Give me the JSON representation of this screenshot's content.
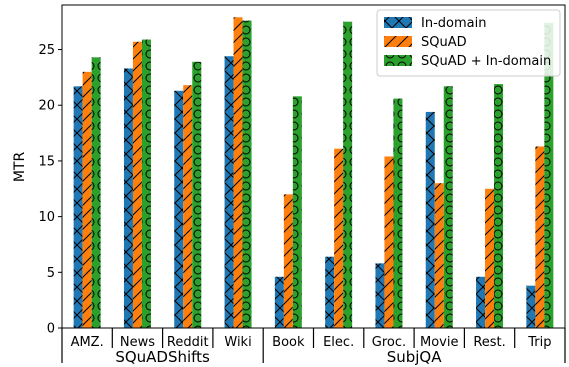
{
  "chart_data": {
    "type": "bar",
    "ylabel": "MTR",
    "ylim": [
      0,
      29
    ],
    "yticks": [
      0,
      5,
      10,
      15,
      20,
      25
    ],
    "categories": [
      "AMZ.",
      "News",
      "Reddit",
      "Wiki",
      "Book",
      "Elec.",
      "Groc.",
      "Movie",
      "Rest.",
      "Trip"
    ],
    "groups": [
      {
        "label": "SQuADShifts",
        "from": 0,
        "to": 3
      },
      {
        "label": "SubjQA",
        "from": 4,
        "to": 9
      }
    ],
    "legend_position": "top-right",
    "series": [
      {
        "name": "In-domain",
        "color": "#1f77b4",
        "hatch": "x",
        "values": [
          21.7,
          23.3,
          21.3,
          24.4,
          4.6,
          6.4,
          5.8,
          19.4,
          4.6,
          3.8
        ]
      },
      {
        "name": "SQuAD",
        "color": "#ff7f0e",
        "hatch": "/",
        "values": [
          23.0,
          25.7,
          21.8,
          27.9,
          12.0,
          16.1,
          15.4,
          13.0,
          12.5,
          16.3
        ]
      },
      {
        "name": "SQuAD + In-domain",
        "color": "#2ca02c",
        "hatch": "o",
        "values": [
          24.3,
          25.9,
          23.9,
          27.6,
          20.8,
          27.5,
          20.6,
          21.7,
          21.9,
          27.4
        ]
      }
    ]
  }
}
